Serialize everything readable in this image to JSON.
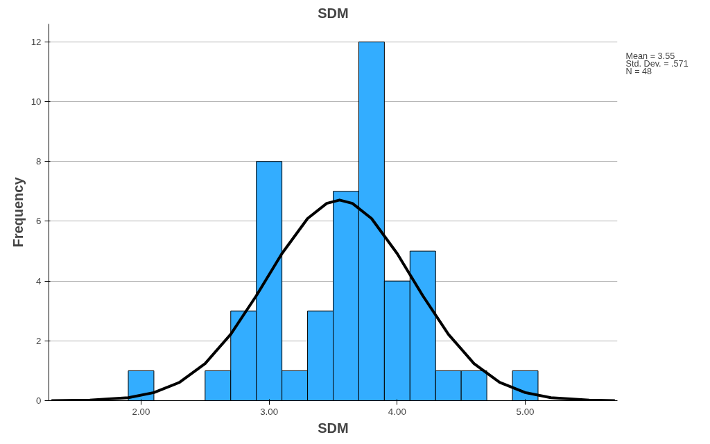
{
  "chart_data": {
    "type": "histogram",
    "title": "SDM",
    "xlabel": "SDM",
    "ylabel": "Frequency",
    "bins": [
      1.9,
      2.1,
      2.3,
      2.5,
      2.7,
      2.9,
      3.1,
      3.3,
      3.5,
      3.7,
      3.9,
      4.1,
      4.3,
      4.5,
      4.7,
      4.9,
      5.1
    ],
    "series": [
      {
        "color": "#33adff",
        "values": [
          1,
          0,
          0,
          1,
          3,
          8,
          1,
          3,
          7,
          12,
          4,
          5,
          1,
          1,
          0,
          1
        ]
      },
      {
        "type": "line",
        "color": "#000000",
        "x": [
          1.3,
          1.6,
          1.9,
          2.1,
          2.3,
          2.5,
          2.7,
          2.9,
          3.1,
          3.3,
          3.45,
          3.55,
          3.65,
          3.8,
          4.0,
          4.2,
          4.4,
          4.6,
          4.8,
          5.0,
          5.2,
          5.5,
          5.7
        ],
        "values": [
          0,
          0.02,
          0.1,
          0.27,
          0.61,
          1.24,
          2.22,
          3.51,
          4.92,
          6.09,
          6.6,
          6.71,
          6.6,
          6.09,
          4.92,
          3.51,
          2.22,
          1.24,
          0.61,
          0.27,
          0.1,
          0.02,
          0
        ]
      }
    ],
    "xlim": [
      1.28,
      5.72
    ],
    "ylim": [
      0,
      12.6
    ],
    "xticks": [
      {
        "value": 2,
        "label": "2.00"
      },
      {
        "value": 3,
        "label": "3.00"
      },
      {
        "value": 4,
        "label": "4.00"
      },
      {
        "value": 5,
        "label": "5.00"
      }
    ],
    "yticks": [
      0,
      2,
      4,
      6,
      8,
      10,
      12
    ],
    "grid": "y",
    "annotations": [
      "Mean = 3.55",
      "Std. Dev. = .571",
      "N = 48"
    ]
  }
}
